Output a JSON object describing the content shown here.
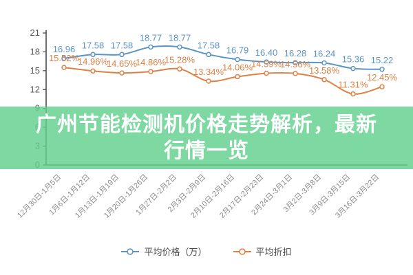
{
  "banner": {
    "title": "广州节能检测机价格走势解析，最新行情一览",
    "background_color": "#62d08d",
    "background_opacity": 0.82,
    "text_color": "#ffffff"
  },
  "legend": {
    "items": [
      {
        "label": "平均价格（万）",
        "color": "#5b93c4"
      },
      {
        "label": "平均折扣",
        "color": "#dd8045"
      }
    ]
  },
  "chart_data": {
    "type": "line",
    "title": "",
    "xlabel": "",
    "ylabel": "",
    "categories": [
      "12月30日-1月5日",
      "1月6日-1月12日",
      "1月13日-1月19日",
      "1月20日-1月26日",
      "1月27日-2月2日",
      "2月3日-2月9日",
      "2月10日-2月16日",
      "2月17日-2月23日",
      "2月24日-3月1日",
      "3月2日-3月8日",
      "3月9日-3月15日",
      "3月16日-3月22日"
    ],
    "series": [
      {
        "name": "平均价格（万）",
        "id": "price-series",
        "color": "#5b93c4",
        "label_suffix": "",
        "values": [
          16.96,
          17.58,
          17.58,
          18.77,
          18.77,
          17.58,
          16.79,
          16.4,
          16.28,
          16.24,
          15.36,
          15.22
        ]
      },
      {
        "name": "平均折扣",
        "id": "discount-series",
        "color": "#dd8045",
        "label_suffix": "%",
        "values": [
          15.52,
          14.96,
          14.65,
          14.86,
          15.28,
          13.34,
          14.06,
          14.59,
          14.56,
          13.58,
          11.31,
          12.45
        ]
      }
    ],
    "ylim": [
      0,
      21
    ],
    "y_ticks": [
      0,
      3,
      6,
      9,
      12,
      15,
      18,
      21
    ],
    "grid": false,
    "smooth": true,
    "legend_position": "bottom",
    "axis_color": "#4a4a4a",
    "x_tick_color": "#8c8c8c",
    "y_tick_color": "#595959"
  }
}
